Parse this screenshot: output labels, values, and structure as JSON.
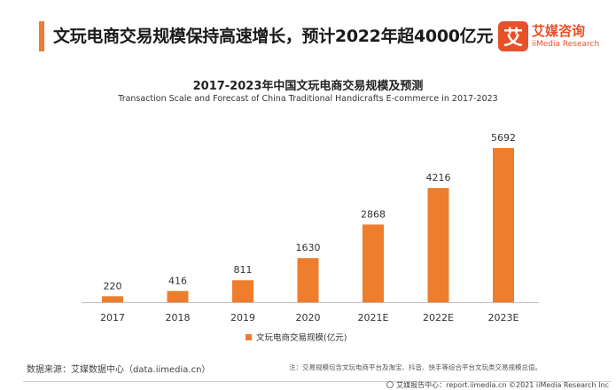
{
  "header": {
    "headline": "文玩电商交易规模保持高速增长，预计2022年超4000亿元"
  },
  "logo": {
    "mark": "艾",
    "name_cn": "艾媒咨询",
    "name_en": "iiMedia Research"
  },
  "colors": {
    "accent": "#ee7d2e",
    "bar": "#ee7d2e",
    "brand": "#e8502a"
  },
  "chart_data": {
    "type": "bar",
    "title": "2017-2023年中国文玩电商交易规模及预测",
    "subtitle": "Transaction Scale and Forecast of China Traditional Handicrafts E-commerce in 2017-2023",
    "categories": [
      "2017",
      "2018",
      "2019",
      "2020",
      "2021E",
      "2022E",
      "2023E"
    ],
    "series": [
      {
        "name": "文玩电商交易规模(亿元)",
        "values": [
          220,
          416,
          811,
          1630,
          2868,
          4216,
          5692
        ]
      }
    ],
    "data_labels": [
      "220",
      "416",
      "811",
      "1630",
      "2868",
      "4216",
      "5692"
    ],
    "ylim": [
      0,
      6000
    ],
    "grid": false,
    "legend_position": "bottom-center"
  },
  "source": "数据来源：艾媒数据中心（data.iimedia.cn）",
  "note": "注：交易规模包含文玩电商平台及淘宝、抖音、快手等综合平台文玩类交易规模总值。",
  "footer": {
    "text": "艾媒报告中心：report.iimedia.cn  ©2021  iiMedia Research  Inc"
  }
}
